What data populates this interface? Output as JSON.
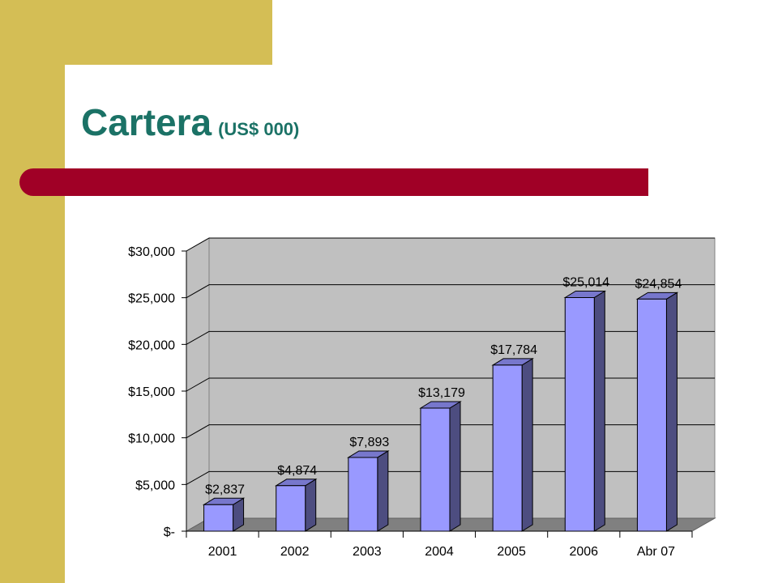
{
  "colors": {
    "side_accent": "#D4BE55",
    "title_text": "#1B7266",
    "rule": "#A00026",
    "plot_wall": "#C0C0C0",
    "plot_floor": "#808080",
    "bar_front": "#9999FF",
    "bar_side": "#4D4D80",
    "bar_top": "#7777CC"
  },
  "slide": {
    "title": "Cartera",
    "subtitle": "(US$ 000)"
  },
  "chart_data": {
    "type": "bar",
    "title": "Cartera (US$ 000)",
    "xlabel": "",
    "ylabel": "",
    "categories": [
      "2001",
      "2002",
      "2003",
      "2004",
      "2005",
      "2006",
      "Abr 07"
    ],
    "values": [
      2837,
      4874,
      7893,
      13179,
      17784,
      25014,
      24854
    ],
    "value_labels": [
      "$2,837",
      "$4,874",
      "$7,893",
      "$13,179",
      "$17,784",
      "$25,014",
      "$24,854"
    ],
    "ylim": [
      0,
      30000
    ],
    "y_ticks": [
      0,
      5000,
      10000,
      15000,
      20000,
      25000,
      30000
    ],
    "y_tick_labels": [
      "$-",
      "$5,000",
      "$10,000",
      "$15,000",
      "$20,000",
      "$25,000",
      "$30,000"
    ],
    "grid": true,
    "legend": "none",
    "style": "3d-column"
  }
}
